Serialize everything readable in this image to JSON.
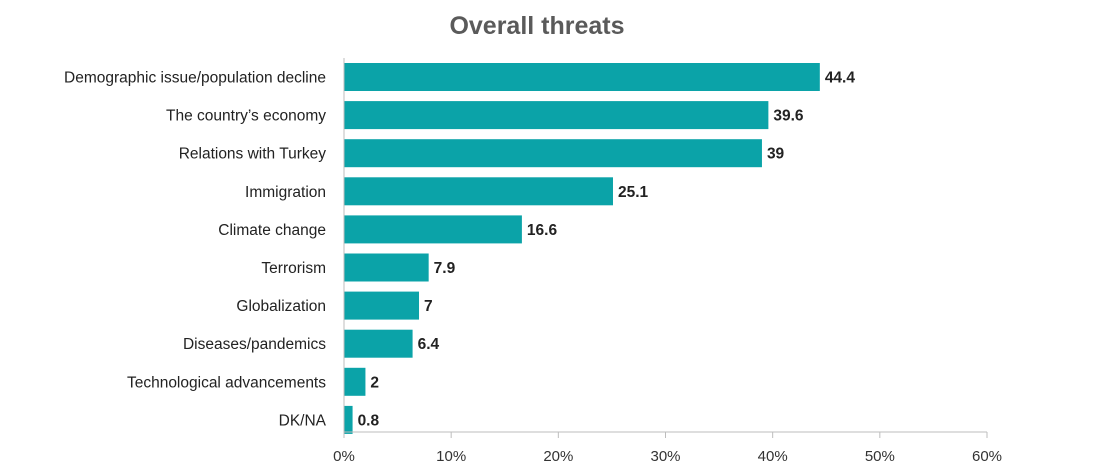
{
  "chart_data": {
    "type": "bar",
    "orientation": "horizontal",
    "title": "Overall threats",
    "categories": [
      "Demographic issue/population decline",
      "The country’s economy",
      "Relations with Turkey",
      "Immigration",
      "Climate change",
      "Terrorism",
      "Globalization",
      "Diseases/pandemics",
      "Technological advancements",
      "DK/NA"
    ],
    "values": [
      44.4,
      39.6,
      39,
      25.1,
      16.6,
      7.9,
      7,
      6.4,
      2,
      0.8
    ],
    "value_labels": [
      "44.4",
      "39.6",
      "39",
      "25.1",
      "16.6",
      "7.9",
      "7",
      "6.4",
      "2",
      "0.8"
    ],
    "xlim": [
      0,
      60
    ],
    "xticks": [
      0,
      10,
      20,
      30,
      40,
      50,
      60
    ],
    "xtick_labels": [
      "0%",
      "10%",
      "20%",
      "30%",
      "40%",
      "50%",
      "60%"
    ],
    "bar_color": "#0ba3a8",
    "grid": false,
    "legend": "none"
  }
}
